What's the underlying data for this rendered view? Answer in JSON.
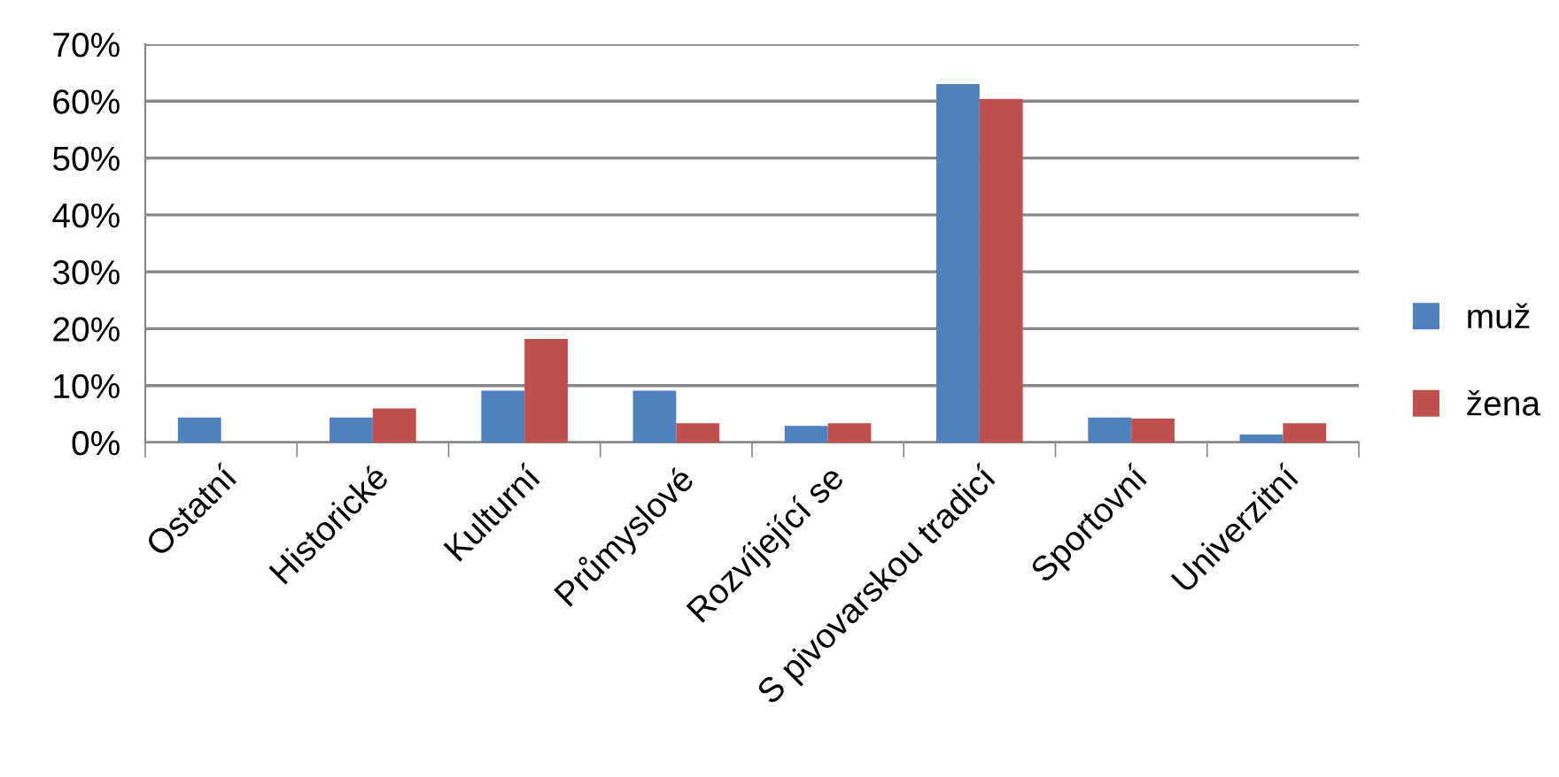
{
  "chart_data": {
    "type": "bar",
    "categories": [
      "Ostatní",
      "Historické",
      "Kulturní",
      "Průmyslové",
      "Rozvíjející se",
      "S pivovarskou tradicí",
      "Sportovní",
      "Univerzitní"
    ],
    "series": [
      {
        "name": "muž",
        "color": "#4f81bd",
        "values": [
          4.4,
          4.4,
          9.1,
          9.1,
          2.9,
          63.0,
          4.4,
          1.4
        ]
      },
      {
        "name": "žena",
        "color": "#c0504d",
        "values": [
          0,
          6.0,
          18.2,
          3.4,
          3.4,
          60.4,
          4.2,
          3.4
        ]
      }
    ],
    "ylim": [
      0,
      70
    ],
    "yticks": [
      {
        "value": 0,
        "label": "0%"
      },
      {
        "value": 10,
        "label": "10%"
      },
      {
        "value": 20,
        "label": "20%"
      },
      {
        "value": 30,
        "label": "30%"
      },
      {
        "value": 40,
        "label": "40%"
      },
      {
        "value": 50,
        "label": "50%"
      },
      {
        "value": 60,
        "label": "60%"
      },
      {
        "value": 70,
        "label": "70%"
      }
    ],
    "grid": "y",
    "legend": "right"
  }
}
